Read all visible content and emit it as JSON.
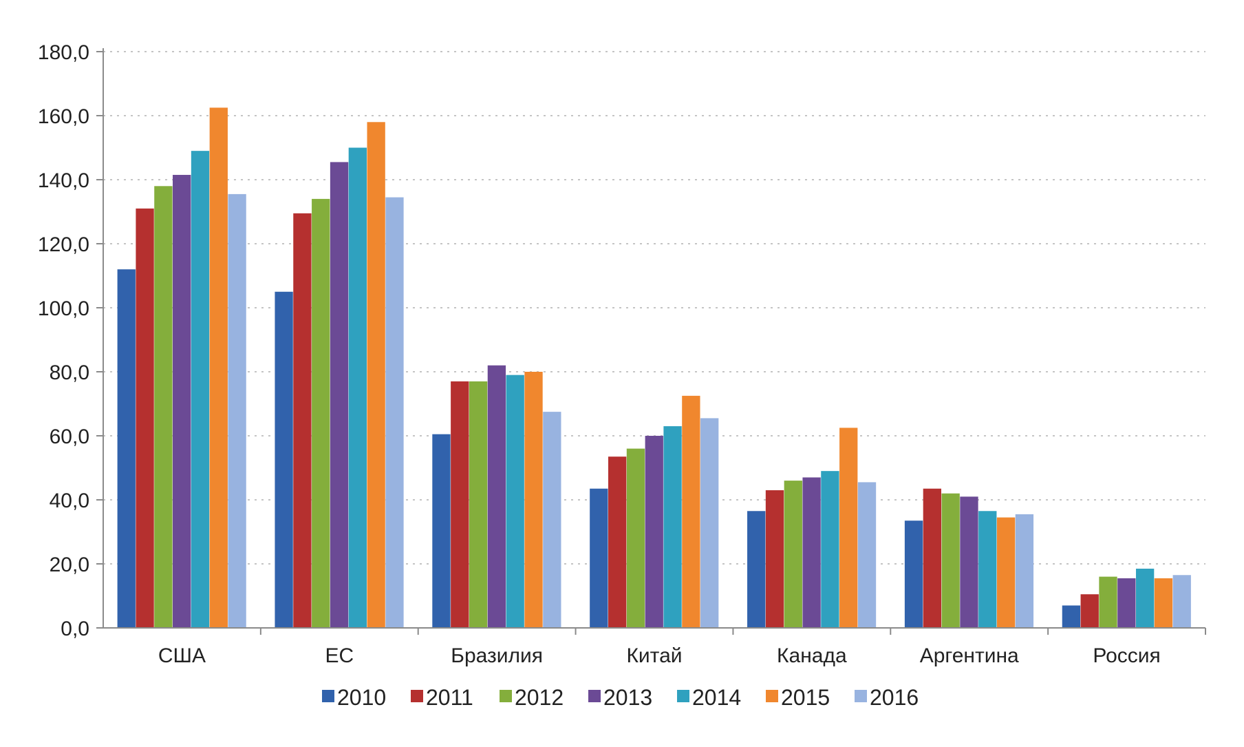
{
  "chart_data": {
    "type": "bar",
    "title": "",
    "xlabel": "",
    "ylabel": "",
    "categories": [
      "США",
      "ЕС",
      "Бразилия",
      "Китай",
      "Канада",
      "Аргентина",
      "Россия"
    ],
    "series": [
      {
        "name": "2010",
        "color": "#3162AC",
        "values": [
          112,
          105,
          60.5,
          43.5,
          36.5,
          33.5,
          7
        ]
      },
      {
        "name": "2011",
        "color": "#B5302F",
        "values": [
          131,
          129.5,
          77,
          53.5,
          43,
          43.5,
          10.5
        ]
      },
      {
        "name": "2012",
        "color": "#84AE3C",
        "values": [
          138,
          134,
          77,
          56,
          46,
          42,
          16
        ]
      },
      {
        "name": "2013",
        "color": "#6B4A95",
        "values": [
          141.5,
          145.5,
          82,
          60,
          47,
          41,
          15.5
        ]
      },
      {
        "name": "2014",
        "color": "#2FA1BF",
        "values": [
          149,
          150,
          79,
          63,
          49,
          36.5,
          18.5
        ]
      },
      {
        "name": "2015",
        "color": "#F0872E",
        "values": [
          162.5,
          158,
          80,
          72.5,
          62.5,
          34.5,
          15.5
        ]
      },
      {
        "name": "2016",
        "color": "#98B3E0",
        "values": [
          135.5,
          134.5,
          67.5,
          65.5,
          45.5,
          35.5,
          16.5
        ]
      }
    ],
    "ylim": [
      0,
      180
    ],
    "yticks": [
      "0,0",
      "20,0",
      "40,0",
      "60,0",
      "80,0",
      "100,0",
      "120,0",
      "140,0",
      "160,0",
      "180,0"
    ],
    "grid": "horizontal dotted",
    "legend_position": "bottom"
  }
}
